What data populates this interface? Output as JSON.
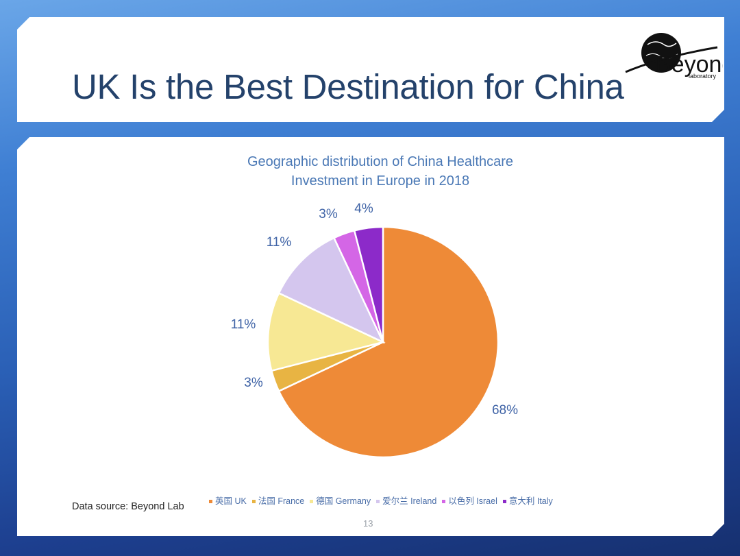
{
  "slide": {
    "title": "UK Is the Best Destination for China",
    "source": "Data source: Beyond Lab",
    "page_number": "13",
    "logo": {
      "name": "Beyond",
      "sub": "laboratory"
    }
  },
  "chart_data": {
    "type": "pie",
    "title_lines": [
      "Geographic distribution of China Healthcare",
      "Investment in Europe in 2018"
    ],
    "slices": [
      {
        "label": "英国 UK",
        "value": 68,
        "text": "68%",
        "color": "#ee8a37"
      },
      {
        "label": "法国 France",
        "value": 3,
        "text": "3%",
        "color": "#e8b443"
      },
      {
        "label": "德国 Germany",
        "value": 11,
        "text": "11%",
        "color": "#f7e894"
      },
      {
        "label": "爱尔兰 Ireland",
        "value": 11,
        "text": "11%",
        "color": "#d4c6ee"
      },
      {
        "label": "以色列 Israel",
        "value": 3,
        "text": "3%",
        "color": "#d466e6"
      },
      {
        "label": "意大利 Italy",
        "value": 4,
        "text": "4%",
        "color": "#8c2ac9"
      }
    ],
    "legend_position": "bottom",
    "label_color": "#3f63a6"
  }
}
